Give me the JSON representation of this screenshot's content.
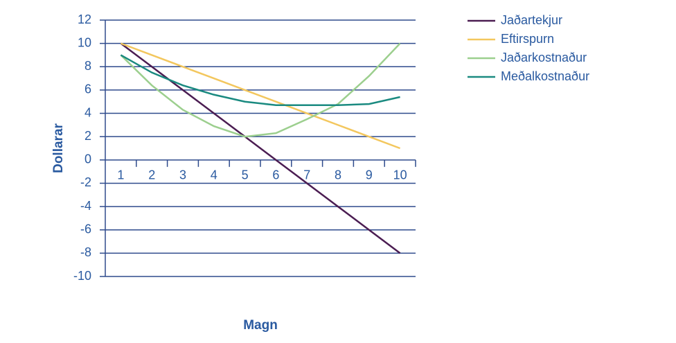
{
  "chart_data": {
    "type": "line",
    "x_label": "Magn",
    "y_label": "Dollarar",
    "x": [
      1,
      2,
      3,
      4,
      5,
      6,
      7,
      8,
      9,
      10
    ],
    "xlim": [
      0.5,
      10.5
    ],
    "xticks": [
      1,
      2,
      3,
      4,
      5,
      6,
      7,
      8,
      9,
      10
    ],
    "ylim": [
      -10,
      12
    ],
    "yticks": [
      -10,
      -8,
      -6,
      -4,
      -2,
      0,
      2,
      4,
      6,
      8,
      10,
      12
    ],
    "grid": true,
    "legend": "right",
    "series": [
      {
        "name": "Jaðartekjur",
        "color": "#4b1d52",
        "values": [
          10,
          8,
          6,
          4,
          2,
          0,
          -2,
          -4,
          -6,
          -8
        ]
      },
      {
        "name": "Eftirspurn",
        "color": "#f3c75e",
        "values": [
          10,
          9,
          8,
          7,
          6,
          5,
          4,
          3,
          2,
          1
        ]
      },
      {
        "name": "Jaðarkostnaður",
        "color": "#9ccf8e",
        "values": [
          9,
          6.4,
          4.3,
          2.9,
          2,
          2.3,
          3.5,
          4.8,
          7.2,
          10
        ]
      },
      {
        "name": "Meðalkostnaður",
        "color": "#1a8a80",
        "values": [
          9,
          7.5,
          6.4,
          5.6,
          5,
          4.7,
          4.7,
          4.7,
          4.8,
          5.4
        ]
      }
    ]
  }
}
